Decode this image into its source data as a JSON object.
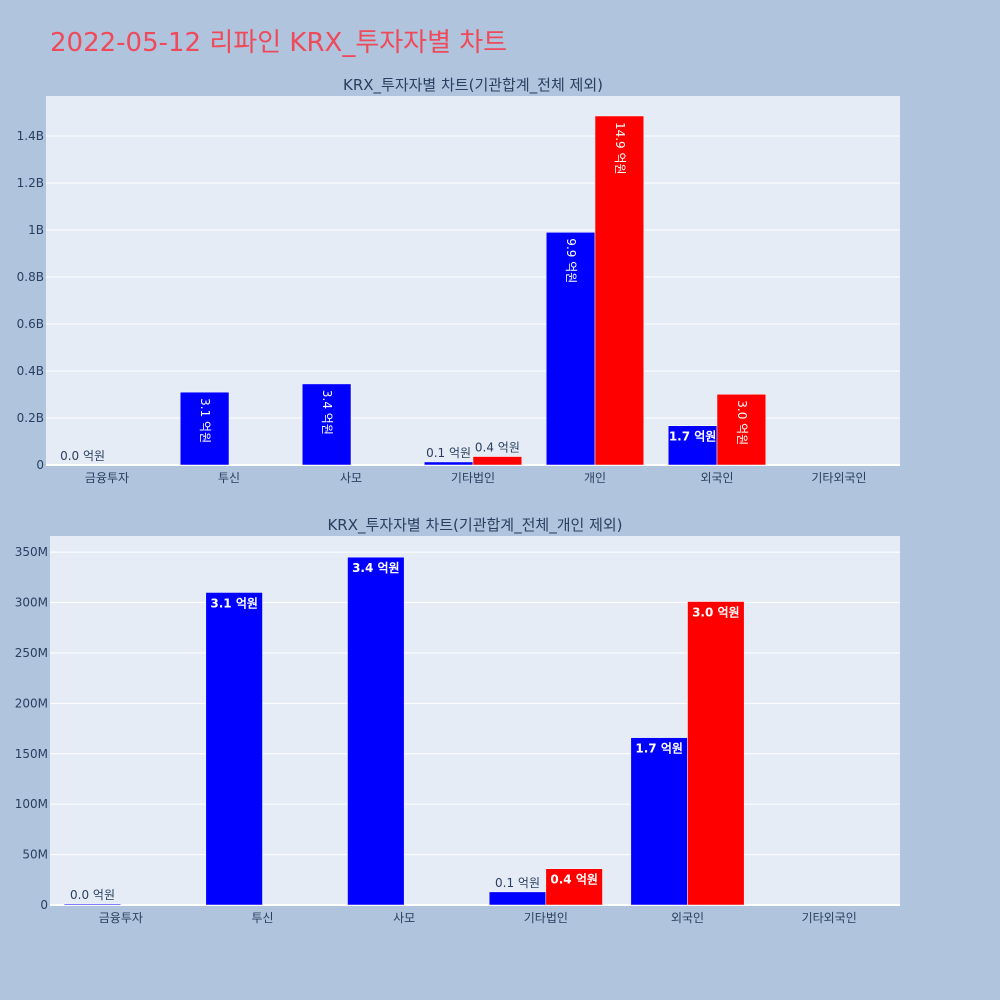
{
  "page_title": "2022-05-12 리파인 KRX_투자자별 차트",
  "chart_data": [
    {
      "type": "bar",
      "title": "KRX_투자자별 차트(기관합계_전체 제외)",
      "categories": [
        "금융투자",
        "투신",
        "사모",
        "기타법인",
        "개인",
        "외국인",
        "기타외국인"
      ],
      "ylim": [
        0,
        1.57
      ],
      "ytick_values": [
        0,
        0.2,
        0.4,
        0.6,
        0.8,
        1.0,
        1.2,
        1.4
      ],
      "ytick_labels": [
        "0",
        "0.2B",
        "0.4B",
        "0.6B",
        "0.8B",
        "1B",
        "1.2B",
        "1.4B"
      ],
      "grid": true,
      "series": [
        {
          "color": "#0000ff",
          "values": [
            0.001,
            0.31,
            0.345,
            0.013,
            0.99,
            0.167,
            0.0
          ],
          "labels": [
            "0.0 억원",
            "3.1 억원",
            "3.4 억원",
            "0.1 억원",
            "9.9 억원",
            "1.7 억원",
            ""
          ]
        },
        {
          "color": "#ff0000",
          "values": [
            0.0,
            0.0,
            0.0,
            0.036,
            1.485,
            0.301,
            0.0
          ],
          "labels": [
            "",
            "",
            "",
            "0.4 억원",
            "14.9 억원",
            "3.0 억원",
            ""
          ]
        }
      ]
    },
    {
      "type": "bar",
      "title": "KRX_투자자별 차트(기관합계_전체_개인 제외)",
      "categories": [
        "금융투자",
        "투신",
        "사모",
        "기타법인",
        "외국인",
        "기타외국인"
      ],
      "ylim": [
        0,
        366
      ],
      "ytick_values": [
        0,
        50,
        100,
        150,
        200,
        250,
        300,
        350
      ],
      "ytick_labels": [
        "0",
        "50M",
        "100M",
        "150M",
        "200M",
        "250M",
        "300M",
        "350M"
      ],
      "grid": true,
      "series": [
        {
          "color": "#0000ff",
          "values": [
            1,
            310,
            345,
            13,
            166,
            0
          ],
          "labels": [
            "0.0 억원",
            "3.1 억원",
            "3.4 억원",
            "0.1 억원",
            "1.7 억원",
            ""
          ]
        },
        {
          "color": "#ff0000",
          "values": [
            0,
            0,
            0,
            36,
            301,
            0
          ],
          "labels": [
            "",
            "",
            "",
            "0.4 억원",
            "3.0 억원",
            ""
          ]
        }
      ]
    }
  ]
}
